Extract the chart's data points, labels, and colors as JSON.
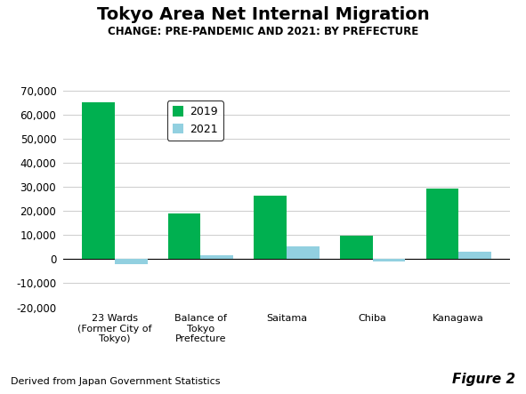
{
  "title": "Tokyo Area Net Internal Migration",
  "subtitle": "CHANGE: PRE-PANDEMIC AND 2021: BY PREFECTURE",
  "categories": [
    "23 Wards\n(Former City of\nTokyo)",
    "Balance of\nTokyo\nPrefecture",
    "Saitama",
    "Chiba",
    "Kanagawa"
  ],
  "values_2019": [
    65000,
    19000,
    26500,
    9700,
    29500
  ],
  "values_2021": [
    -2200,
    1500,
    5200,
    -900,
    3000
  ],
  "color_2019": "#00b050",
  "color_2021": "#92d0e0",
  "ylim": [
    -20000,
    70000
  ],
  "yticks": [
    -20000,
    -10000,
    0,
    10000,
    20000,
    30000,
    40000,
    50000,
    60000,
    70000
  ],
  "legend_labels": [
    "2019",
    "2021"
  ],
  "footer_left": "Derived from Japan Government Statistics",
  "footer_right": "Figure 2",
  "background_color": "#ffffff"
}
